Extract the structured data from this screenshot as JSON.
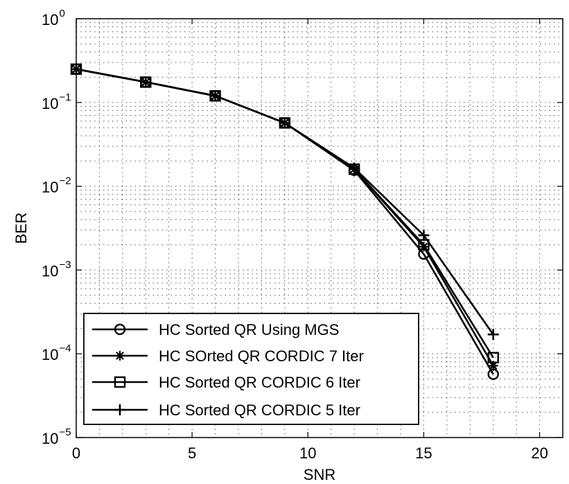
{
  "chart_data": {
    "type": "line",
    "title": "",
    "xlabel": "SNR",
    "ylabel": "BER",
    "xlim": [
      0,
      21
    ],
    "ylim": [
      1e-05,
      1
    ],
    "yscale": "log",
    "grid": true,
    "legend_position": "bottom-left",
    "x_ticks": [
      0,
      5,
      10,
      15,
      20
    ],
    "y_ticks": [
      {
        "value": 1e-05,
        "base": "10",
        "exp": "−5"
      },
      {
        "value": 0.0001,
        "base": "10",
        "exp": "−4"
      },
      {
        "value": 0.001,
        "base": "10",
        "exp": "−3"
      },
      {
        "value": 0.01,
        "base": "10",
        "exp": "−2"
      },
      {
        "value": 0.1,
        "base": "10",
        "exp": "−1"
      },
      {
        "value": 1,
        "base": "10",
        "exp": "0"
      }
    ],
    "x": [
      0,
      3,
      6,
      9,
      12,
      15,
      18
    ],
    "series": [
      {
        "name": "HC Sorted QR Using MGS",
        "marker": "circle",
        "values": [
          0.25,
          0.175,
          0.12,
          0.057,
          0.0155,
          0.00155,
          5.7e-05
        ]
      },
      {
        "name": "HC SOrted QR CORDIC 7 Iter",
        "marker": "star",
        "values": [
          0.25,
          0.175,
          0.12,
          0.057,
          0.016,
          0.0019,
          7.2e-05
        ]
      },
      {
        "name": "HC Sorted QR CORDIC 6 Iter",
        "marker": "square",
        "values": [
          0.25,
          0.175,
          0.12,
          0.057,
          0.016,
          0.002,
          9e-05
        ]
      },
      {
        "name": "HC Sorted QR CORDIC 5 Iter",
        "marker": "plus",
        "values": [
          0.25,
          0.175,
          0.12,
          0.057,
          0.0165,
          0.0026,
          0.00017
        ]
      }
    ]
  }
}
